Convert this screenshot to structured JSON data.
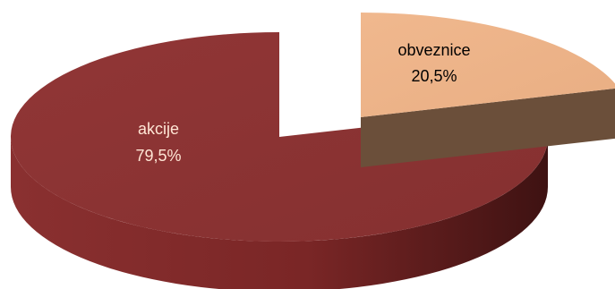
{
  "chart_data": {
    "type": "pie",
    "categories": [
      "akcije",
      "obveznice"
    ],
    "values": [
      79.5,
      20.5
    ],
    "value_labels": [
      "79,5%",
      "20,5%"
    ],
    "exploded": "obveznice",
    "style": "3d",
    "legend": "none",
    "colors": {
      "akcije_top": "#8c3333",
      "akcije_side": "#5e1f1f",
      "obveznice_top": "#edb48a",
      "obveznice_side": "#6b4f3a",
      "akcije_label": "#ffe6d5",
      "obveznice_label": "#000000"
    }
  }
}
